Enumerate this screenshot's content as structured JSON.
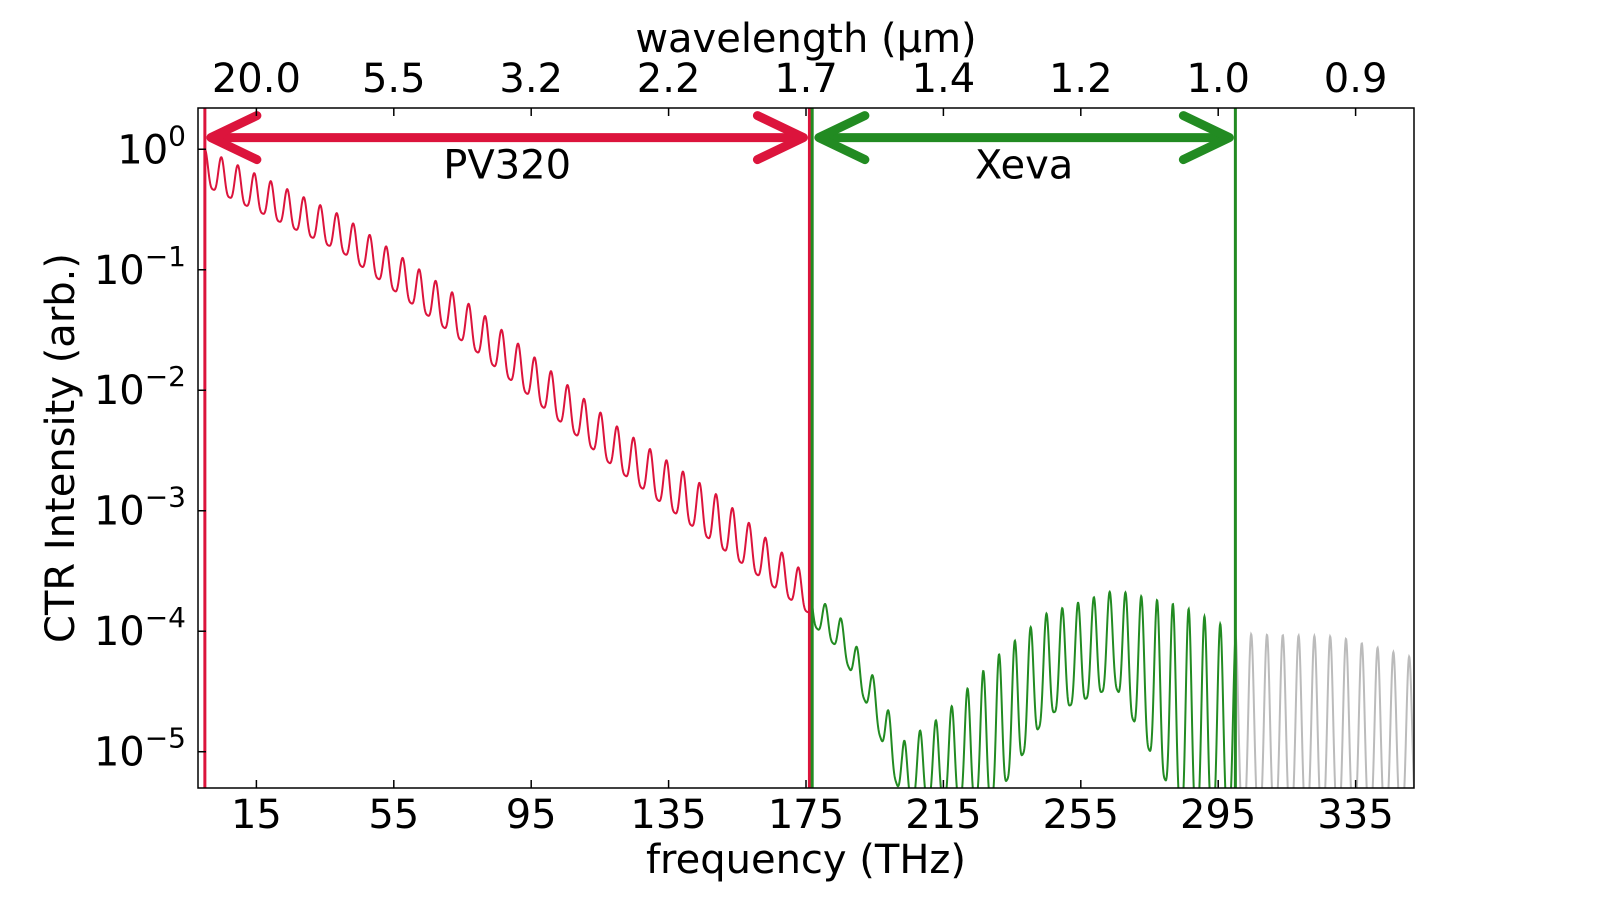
{
  "chart_data": {
    "type": "line",
    "title": "",
    "xlabel": "frequency (THz)",
    "ylabel": "CTR Intensity (arb.)",
    "top_xlabel": "wavelength (μm)",
    "y_scale": "log",
    "xlim": [
      -2,
      352
    ],
    "ylim": [
      5e-06,
      2.2
    ],
    "x_ticks": [
      15,
      55,
      95,
      135,
      175,
      215,
      255,
      295,
      335
    ],
    "y_ticks": [
      {
        "value": 1,
        "base": "10",
        "exp": "0"
      },
      {
        "value": 0.1,
        "base": "10",
        "exp": "−1"
      },
      {
        "value": 0.01,
        "base": "10",
        "exp": "−2"
      },
      {
        "value": 0.001,
        "base": "10",
        "exp": "−3"
      },
      {
        "value": 0.0001,
        "base": "10",
        "exp": "−4"
      },
      {
        "value": 1e-05,
        "base": "10",
        "exp": "−5"
      }
    ],
    "top_ticks": [
      {
        "label": "20.0",
        "x": 15
      },
      {
        "label": "5.5",
        "x": 55
      },
      {
        "label": "3.2",
        "x": 95
      },
      {
        "label": "2.2",
        "x": 135
      },
      {
        "label": "1.7",
        "x": 175
      },
      {
        "label": "1.4",
        "x": 215
      },
      {
        "label": "1.2",
        "x": 255
      },
      {
        "label": "1.0",
        "x": 295
      },
      {
        "label": "0.9",
        "x": 335
      }
    ],
    "grid": false,
    "series": [
      {
        "color": "#dc143c",
        "segment": [
          0,
          176
        ],
        "envelope_peak": [
          [
            0,
            1.0
          ],
          [
            40,
            0.28
          ],
          [
            80,
            0.045
          ],
          [
            120,
            0.005
          ],
          [
            150,
            0.0013
          ],
          [
            176,
            0.00028
          ]
        ],
        "envelope_trough": [
          [
            0,
            0.5
          ],
          [
            40,
            0.14
          ],
          [
            80,
            0.02
          ],
          [
            120,
            0.0022
          ],
          [
            150,
            0.0005
          ],
          [
            176,
            0.00014
          ]
        ],
        "oscillation_period": 4.8
      },
      {
        "color": "#228b22",
        "segment": [
          176,
          300
        ],
        "envelope_peak": [
          [
            176,
            0.00022
          ],
          [
            185,
            0.00013
          ],
          [
            195,
            4e-05
          ],
          [
            203,
            1.2e-05
          ],
          [
            215,
            2e-05
          ],
          [
            230,
            6e-05
          ],
          [
            245,
            0.00014
          ],
          [
            265,
            0.00022
          ],
          [
            285,
            0.00016
          ],
          [
            300,
            0.0001
          ]
        ],
        "envelope_trough": [
          [
            176,
            0.00012
          ],
          [
            185,
            7e-05
          ],
          [
            195,
            1.8e-05
          ],
          [
            203,
            4e-06
          ],
          [
            215,
            4e-06
          ],
          [
            230,
            4e-06
          ],
          [
            245,
            2e-05
          ],
          [
            265,
            3.5e-05
          ],
          [
            285,
            3e-06
          ],
          [
            300,
            3e-06
          ]
        ],
        "oscillation_period": 4.6
      },
      {
        "color": "#bbbbbb",
        "segment": [
          300,
          352
        ],
        "envelope_peak": [
          [
            300,
            9.5e-05
          ],
          [
            330,
            9e-05
          ],
          [
            352,
            6e-05
          ]
        ],
        "envelope_trough": [
          [
            300,
            3e-06
          ],
          [
            352,
            3e-06
          ]
        ],
        "oscillation_period": 4.6
      }
    ],
    "vertical_lines": [
      {
        "x": 0,
        "color": "#dc143c"
      },
      {
        "x": 176,
        "color": "#dc143c"
      },
      {
        "x": 176.8,
        "color": "#228b22"
      },
      {
        "x": 300,
        "color": "#228b22"
      }
    ],
    "bands": [
      {
        "label": "PV320",
        "x_start": 0,
        "x_end": 176,
        "y": 1.25,
        "label_y": 0.75,
        "color": "#dc143c"
      },
      {
        "label": "Xeva",
        "x_start": 177,
        "x_end": 300,
        "y": 1.25,
        "label_y": 0.75,
        "color": "#228b22"
      }
    ]
  }
}
